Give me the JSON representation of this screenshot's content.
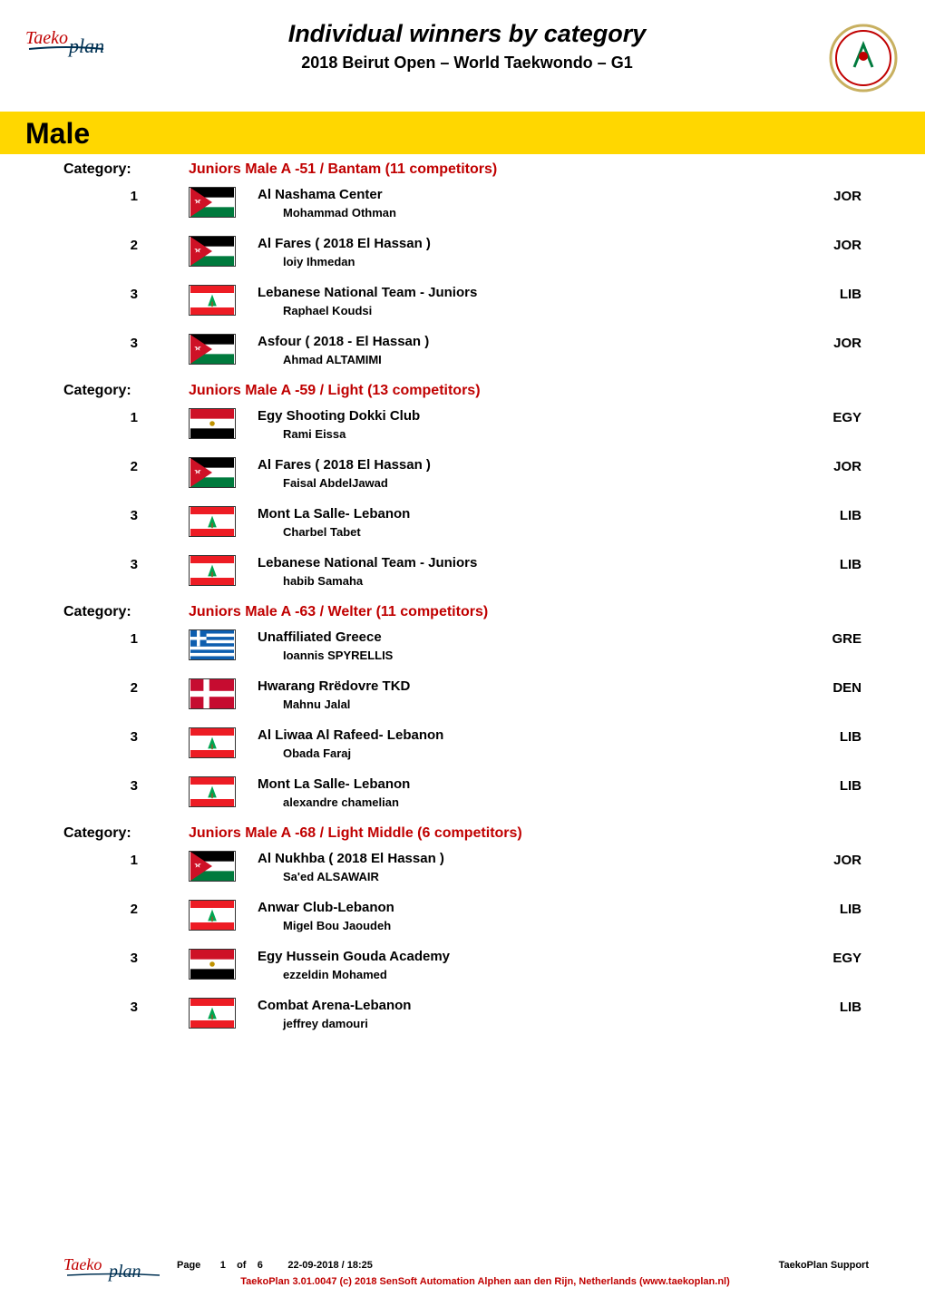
{
  "header": {
    "title": "Individual winners by category",
    "subtitle": "2018 Beirut Open – World Taekwondo – G1"
  },
  "gender_banner": "Male",
  "labels": {
    "category": "Category:"
  },
  "categories": [
    {
      "title": "Juniors Male A -51  /  Bantam (11 competitors)",
      "places": [
        {
          "rank": "1",
          "flag": "JOR",
          "club": "Al Nashama Center",
          "athlete": "Mohammad Othman",
          "country": "JOR"
        },
        {
          "rank": "2",
          "flag": "JOR",
          "club": "Al Fares ( 2018 El Hassan )",
          "athlete": "loiy Ihmedan",
          "country": "JOR"
        },
        {
          "rank": "3",
          "flag": "LIB",
          "club": "Lebanese National Team - Juniors",
          "athlete": "Raphael Koudsi",
          "country": "LIB"
        },
        {
          "rank": "3",
          "flag": "JOR",
          "club": "Asfour ( 2018 - El Hassan )",
          "athlete": "Ahmad ALTAMIMI",
          "country": "JOR"
        }
      ]
    },
    {
      "title": "Juniors Male A -59  /  Light (13 competitors)",
      "places": [
        {
          "rank": "1",
          "flag": "EGY",
          "club": "Egy Shooting Dokki Club",
          "athlete": "Rami Eissa",
          "country": "EGY"
        },
        {
          "rank": "2",
          "flag": "JOR",
          "club": "Al Fares ( 2018 El Hassan )",
          "athlete": "Faisal AbdelJawad",
          "country": "JOR"
        },
        {
          "rank": "3",
          "flag": "LIB",
          "club": "Mont La Salle- Lebanon",
          "athlete": "Charbel Tabet",
          "country": "LIB"
        },
        {
          "rank": "3",
          "flag": "LIB",
          "club": "Lebanese National Team - Juniors",
          "athlete": "habib Samaha",
          "country": "LIB"
        }
      ]
    },
    {
      "title": "Juniors Male A -63  /  Welter (11 competitors)",
      "places": [
        {
          "rank": "1",
          "flag": "GRE",
          "club": "Unaffiliated Greece",
          "athlete": "Ioannis SPYRELLIS",
          "country": "GRE"
        },
        {
          "rank": "2",
          "flag": "DEN",
          "club": "Hwarang Rrëdovre TKD",
          "athlete": "Mahnu Jalal",
          "country": "DEN"
        },
        {
          "rank": "3",
          "flag": "LIB",
          "club": "Al Liwaa Al Rafeed- Lebanon",
          "athlete": "Obada Faraj",
          "country": "LIB"
        },
        {
          "rank": "3",
          "flag": "LIB",
          "club": "Mont La Salle- Lebanon",
          "athlete": "alexandre chamelian",
          "country": "LIB"
        }
      ]
    },
    {
      "title": "Juniors Male A -68  /  Light Middle (6 competitors)",
      "places": [
        {
          "rank": "1",
          "flag": "JOR",
          "club": "Al Nukhba ( 2018 El Hassan )",
          "athlete": "Sa'ed ALSAWAIR",
          "country": "JOR"
        },
        {
          "rank": "2",
          "flag": "LIB",
          "club": "Anwar Club-Lebanon",
          "athlete": "Migel Bou Jaoudeh",
          "country": "LIB"
        },
        {
          "rank": "3",
          "flag": "EGY",
          "club": "Egy Hussein Gouda Academy",
          "athlete": "ezzeldin Mohamed",
          "country": "EGY"
        },
        {
          "rank": "3",
          "flag": "LIB",
          "club": "Combat Arena-Lebanon",
          "athlete": "jeffrey damouri",
          "country": "LIB"
        }
      ]
    }
  ],
  "footer": {
    "page": "Page",
    "pagenum": "1",
    "of": "of",
    "totalpages": "6",
    "timestamp": "22-09-2018 / 18:25",
    "support": "TaekoPlan Support",
    "credit": "TaekoPlan 3.01.0047 (c) 2018 SenSoft Automation Alphen aan den Rijn, Netherlands (www.taekoplan.nl)"
  },
  "flag_svgs": {
    "JOR": "<svg viewBox='0 0 60 40'><rect width='60' height='40' fill='#fff'/><rect width='60' height='13.33' y='0' fill='#000'/><rect width='60' height='13.33' y='26.67' fill='#007a3d'/><polygon points='0,0 30,20 0,40' fill='#ce1126'/><polygon points='10,20 11.2,16.5 14.8,16.5 11.9,18.7 13,22 10,20 7,22 8.1,18.7 5.2,16.5 8.8,16.5' fill='#fff'/></svg>",
    "LIB": "<svg viewBox='0 0 60 40'><rect width='60' height='40' fill='#fff'/><rect width='60' height='10' y='0' fill='#ed1c24'/><rect width='60' height='10' y='30' fill='#ed1c24'/><polygon points='30,12 24,28 36,28' fill='#00a651'/><rect x='29' y='22' width='2' height='7' fill='#8b5a2b'/></svg>",
    "EGY": "<svg viewBox='0 0 60 40'><rect width='60' height='40' fill='#fff'/><rect width='60' height='13.33' y='0' fill='#ce1126'/><rect width='60' height='13.33' y='26.67' fill='#000'/><circle cx='30' cy='20' r='3.5' fill='#c09300'/></svg>",
    "GRE": "<svg viewBox='0 0 60 40'><rect width='60' height='40' fill='#0d5eaf'/><rect width='60' height='4.44' y='4.44' fill='#fff'/><rect width='60' height='4.44' y='13.33' fill='#fff'/><rect width='60' height='4.44' y='22.22' fill='#fff'/><rect width='60' height='4.44' y='31.11' fill='#fff'/><rect width='22' height='22' fill='#0d5eaf'/><rect x='0' y='8.8' width='22' height='4.4' fill='#fff'/><rect x='8.8' y='0' width='4.4' height='22' fill='#fff'/></svg>",
    "DEN": "<svg viewBox='0 0 60 40'><rect width='60' height='40' fill='#c60c30'/><rect x='0' y='16' width='60' height='8' fill='#fff'/><rect x='18' y='0' width='8' height='40' fill='#fff'/></svg>"
  },
  "colors": {
    "banner_bg": "#ffd700",
    "category_text": "#c00000",
    "body_text": "#000000",
    "footer_credit": "#c00000"
  },
  "fonts": {
    "body": "Verdana, Arial, sans-serif",
    "title_size_pt": 20,
    "subtitle_size_pt": 14,
    "banner_size_pt": 24,
    "row_size_pt": 11
  }
}
